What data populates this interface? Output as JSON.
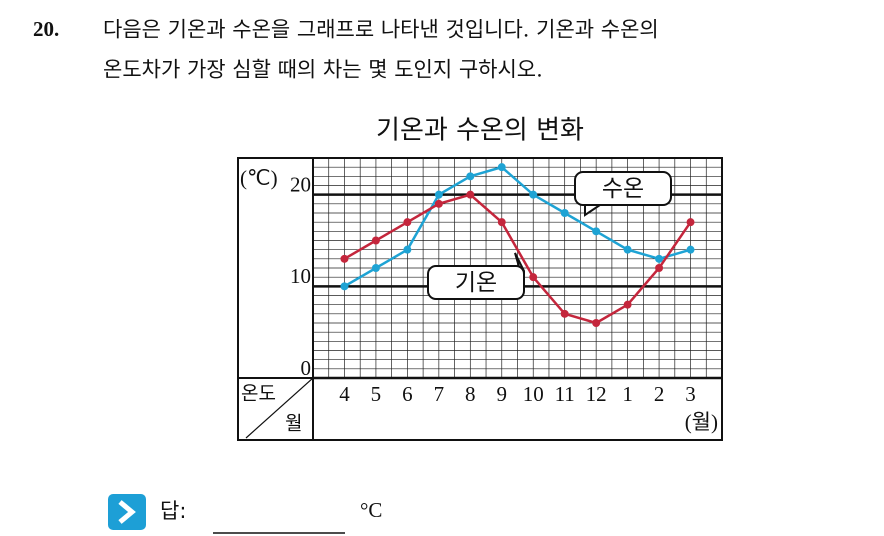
{
  "question": {
    "number": "20.",
    "line1": "다음은 기온과 수온을 그래프로 나타낸 것입니다. 기온과 수온의",
    "line2": "온도차가 가장 심할 때의 차는 몇 도인지 구하시오."
  },
  "chart_data": {
    "type": "line",
    "title": "기온과 수온의 변화",
    "categories": [
      "4",
      "5",
      "6",
      "7",
      "8",
      "9",
      "10",
      "11",
      "12",
      "1",
      "2",
      "3"
    ],
    "series": [
      {
        "name": "수온",
        "color": "#1ea3d4",
        "values": [
          10,
          12,
          14,
          20,
          22,
          23,
          20,
          18,
          16,
          14,
          13,
          14
        ]
      },
      {
        "name": "기온",
        "color": "#c4263c",
        "values": [
          13,
          15,
          17,
          19,
          20,
          17,
          11,
          7,
          6,
          8,
          12,
          17
        ]
      }
    ],
    "ylim": [
      0,
      24
    ],
    "yticks": [
      0,
      10,
      20
    ],
    "grid": true,
    "y_unit": "(℃)",
    "x_unit": "(월)",
    "corner_top": "온도",
    "corner_bottom": "월"
  },
  "answer": {
    "label": "답:",
    "unit": "°C"
  }
}
